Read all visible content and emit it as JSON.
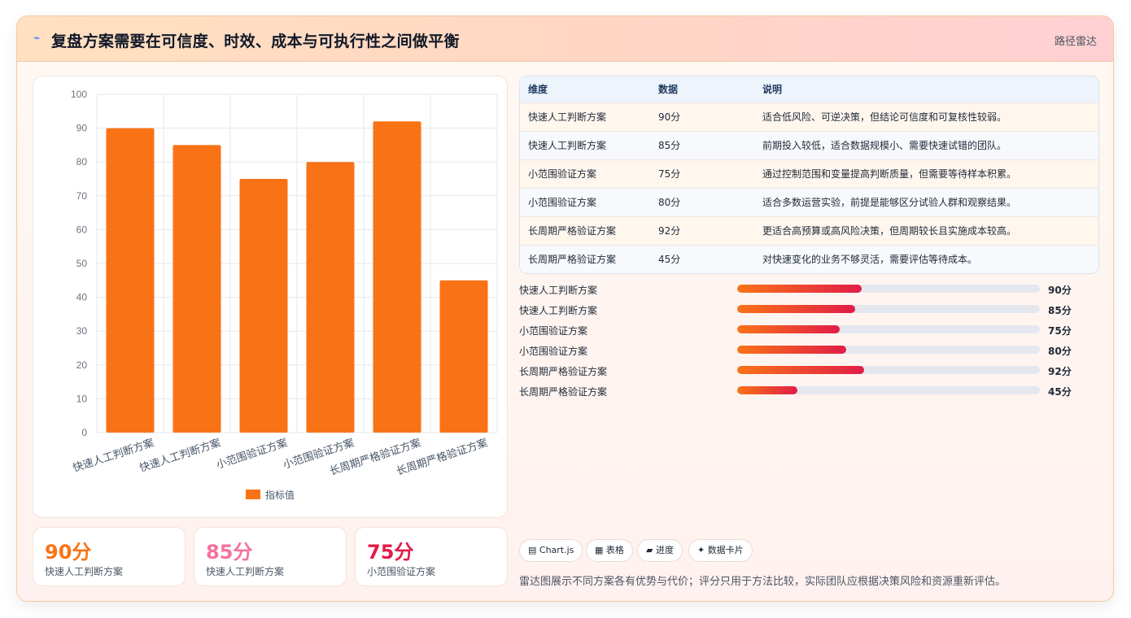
{
  "header": {
    "icon": "lightning-icon",
    "title": "复盘方案需要在可信度、时效、成本与可执行性之间做平衡",
    "tag": "路径雷达"
  },
  "chart_data": {
    "type": "bar",
    "categories": [
      "快速人工判断方案",
      "快速人工判断方案",
      "小范围验证方案",
      "小范围验证方案",
      "长周期严格验证方案",
      "长周期严格验证方案"
    ],
    "series": [
      {
        "name": "指标值",
        "values": [
          90,
          85,
          75,
          80,
          92,
          45
        ],
        "color": "#f97316"
      }
    ],
    "ylim": [
      0,
      100
    ],
    "yticks": [
      0,
      10,
      20,
      30,
      40,
      50,
      60,
      70,
      80,
      90,
      100
    ],
    "grid": true,
    "legend": "bottom"
  },
  "table": {
    "headers": [
      "维度",
      "数据",
      "说明"
    ],
    "rows": [
      [
        "快速人工判断方案",
        "90分",
        "适合低风险、可逆决策，但结论可信度和可复核性较弱。"
      ],
      [
        "快速人工判断方案",
        "85分",
        "前期投入较低，适合数据规模小、需要快速试错的团队。"
      ],
      [
        "小范围验证方案",
        "75分",
        "通过控制范围和变量提高判断质量，但需要等待样本积累。"
      ],
      [
        "小范围验证方案",
        "80分",
        "适合多数运营实验，前提是能够区分试验人群和观察结果。"
      ],
      [
        "长周期严格验证方案",
        "92分",
        "更适合高预算或高风险决策，但周期较长且实施成本较高。"
      ],
      [
        "长周期严格验证方案",
        "45分",
        "对快速变化的业务不够灵活，需要评估等待成本。"
      ]
    ]
  },
  "progress": [
    {
      "label": "快速人工判断方案",
      "value": 90,
      "display": "90分",
      "fill_fraction": 0.41
    },
    {
      "label": "快速人工判断方案",
      "value": 85,
      "display": "85分",
      "fill_fraction": 0.39
    },
    {
      "label": "小范围验证方案",
      "value": 75,
      "display": "75分",
      "fill_fraction": 0.34
    },
    {
      "label": "小范围验证方案",
      "value": 80,
      "display": "80分",
      "fill_fraction": 0.36
    },
    {
      "label": "长周期严格验证方案",
      "value": 92,
      "display": "92分",
      "fill_fraction": 0.42
    },
    {
      "label": "长周期严格验证方案",
      "value": 45,
      "display": "45分",
      "fill_fraction": 0.2
    }
  ],
  "kpis": [
    {
      "value": "90分",
      "label": "快速人工判断方案",
      "color": "#f97316"
    },
    {
      "value": "85分",
      "label": "快速人工判断方案",
      "color": "#f472a0"
    },
    {
      "value": "75分",
      "label": "小范围验证方案",
      "color": "#e11d48"
    }
  ],
  "chips": [
    {
      "icon": "chart-icon",
      "text": "▤ Chart.js"
    },
    {
      "icon": "table-icon",
      "text": "▦ 表格"
    },
    {
      "icon": "progress-icon",
      "text": "▰ 进度"
    },
    {
      "icon": "sparkle-icon",
      "text": "✦ 数据卡片"
    }
  ],
  "note": "雷达图展示不同方案各有优势与代价；评分只用于方法比较，实际团队应根据决策风险和资源重新评估。"
}
